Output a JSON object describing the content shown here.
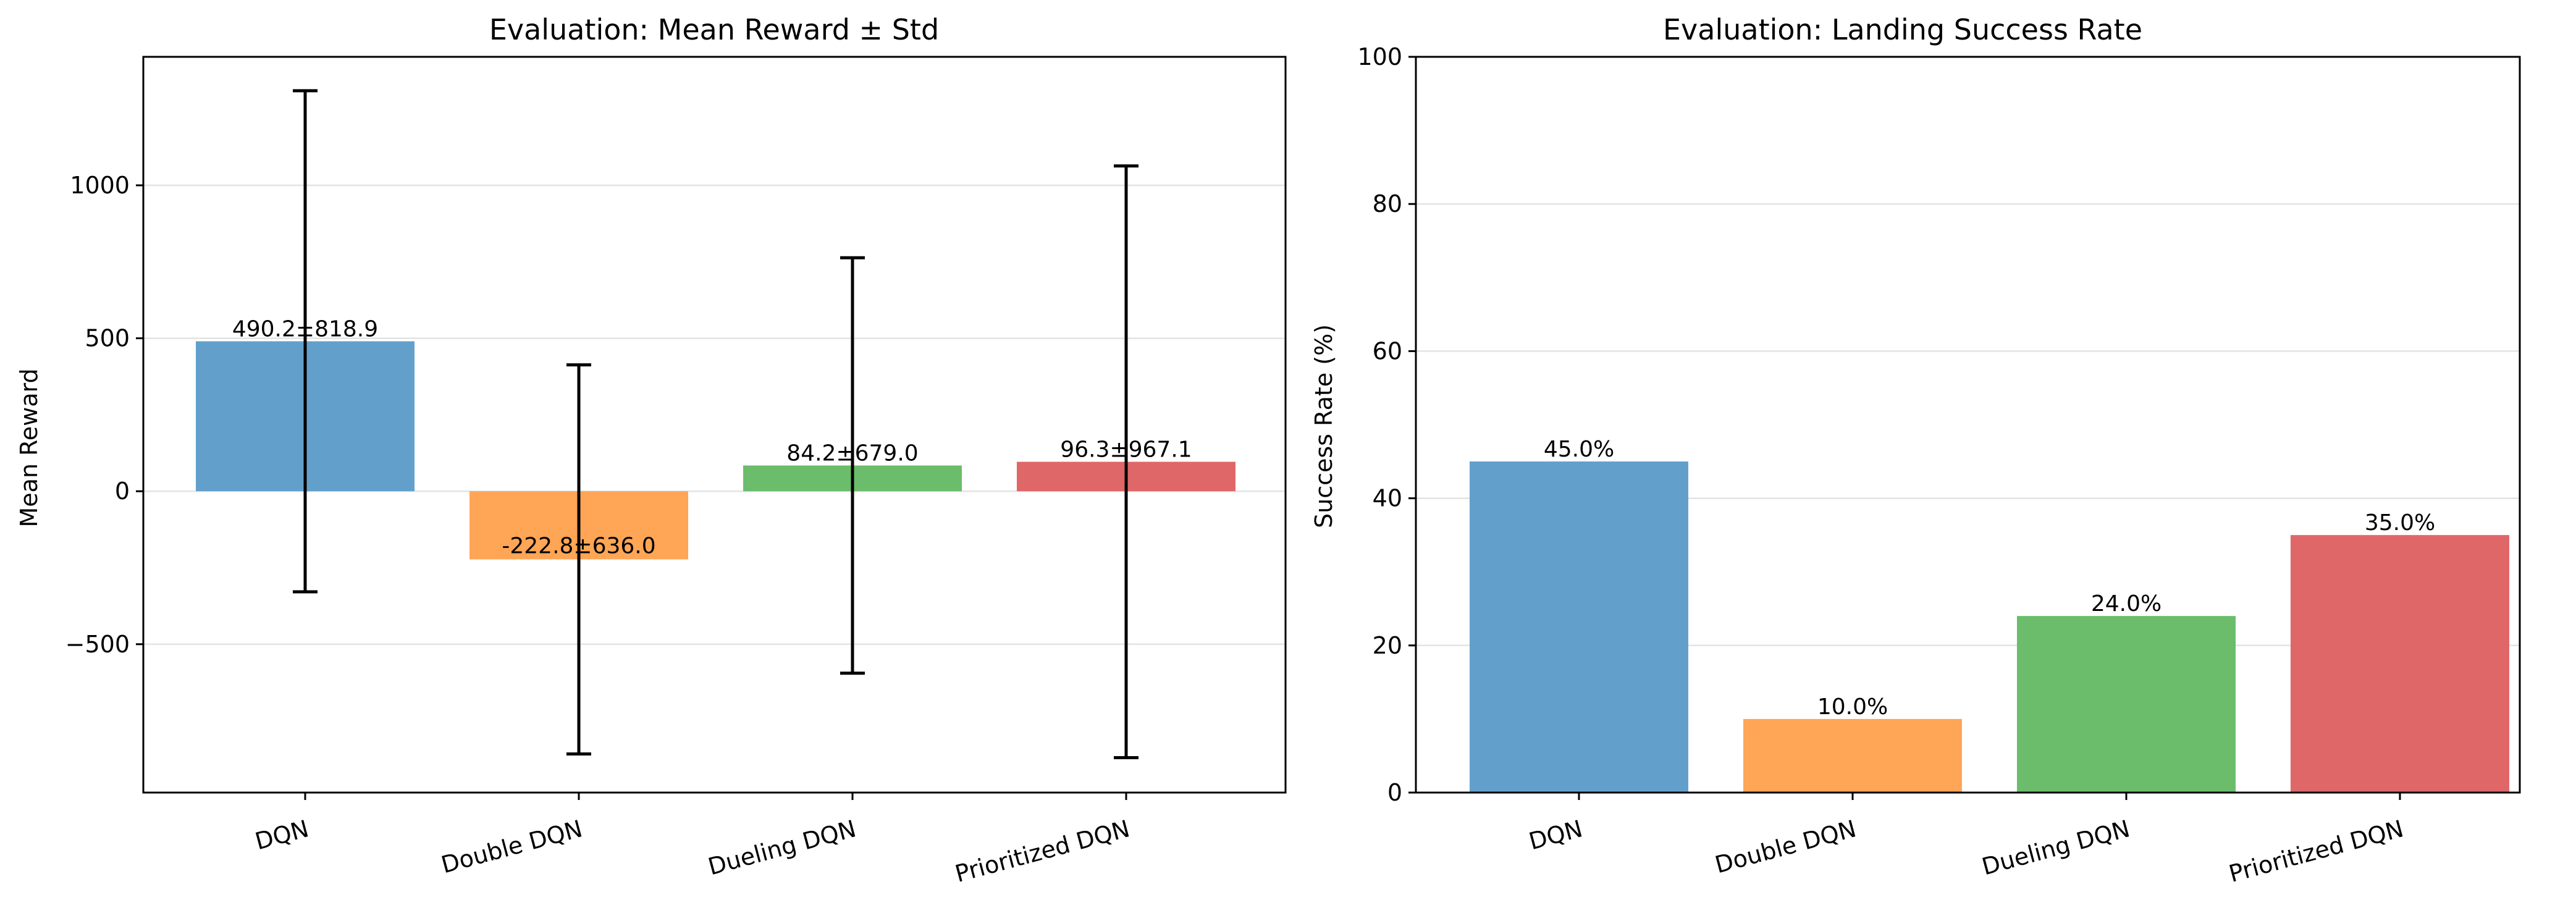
{
  "chart_data": [
    {
      "type": "bar",
      "title": "Evaluation: Mean Reward ± Std",
      "xlabel": "",
      "ylabel": "Mean Reward",
      "categories": [
        "DQN",
        "Double DQN",
        "Dueling DQN",
        "Prioritized DQN"
      ],
      "values": [
        490.2,
        -222.8,
        84.2,
        96.3
      ],
      "errors": [
        818.9,
        636.0,
        679.0,
        967.1
      ],
      "value_labels": [
        "490.2±818.9",
        "-222.8±636.0",
        "84.2±679.0",
        "96.3±967.1"
      ],
      "ylim": [
        -985,
        1420
      ],
      "yticks": [
        -500,
        0,
        500,
        1000
      ],
      "ytick_labels": [
        "−500",
        "0",
        "500",
        "1000"
      ],
      "colors": [
        "#62a0cb",
        "#ffa556",
        "#6bbd6b",
        "#e06767"
      ],
      "grid": "y",
      "legend": "none"
    },
    {
      "type": "bar",
      "title": "Evaluation: Landing Success Rate",
      "xlabel": "",
      "ylabel": "Success Rate (%)",
      "categories": [
        "DQN",
        "Double DQN",
        "Dueling DQN",
        "Prioritized DQN"
      ],
      "values": [
        45.0,
        10.0,
        24.0,
        35.0
      ],
      "value_labels": [
        "45.0%",
        "10.0%",
        "24.0%",
        "35.0%"
      ],
      "ylim": [
        0,
        100
      ],
      "yticks": [
        0,
        20,
        40,
        60,
        80,
        100
      ],
      "ytick_labels": [
        "0",
        "20",
        "40",
        "60",
        "80",
        "100"
      ],
      "colors": [
        "#62a0cb",
        "#ffa556",
        "#6bbd6b",
        "#e06767"
      ],
      "grid": "y",
      "legend": "none"
    }
  ]
}
